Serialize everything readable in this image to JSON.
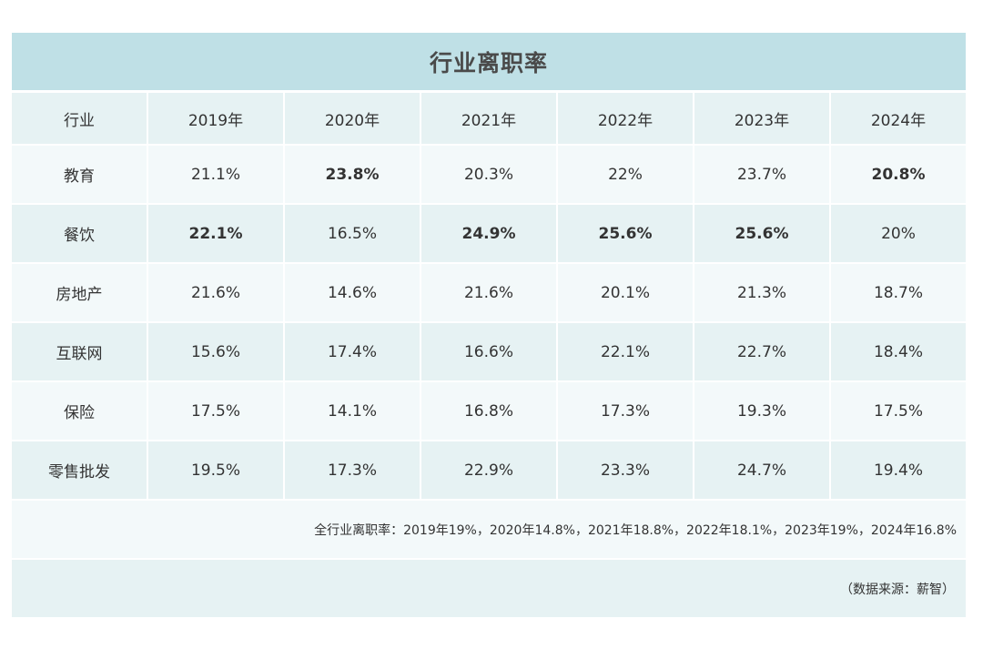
{
  "chart_data": {
    "type": "table",
    "title": "行业离职率",
    "columns": [
      "行业",
      "2019年",
      "2020年",
      "2021年",
      "2022年",
      "2023年",
      "2024年"
    ],
    "rows": [
      {
        "industry": "教育",
        "values": [
          "21.1%",
          "23.8%",
          "20.3%",
          "22%",
          "23.7%",
          "20.8%"
        ],
        "bold": [
          false,
          true,
          false,
          false,
          false,
          true
        ]
      },
      {
        "industry": "餐饮",
        "values": [
          "22.1%",
          "16.5%",
          "24.9%",
          "25.6%",
          "25.6%",
          "20%"
        ],
        "bold": [
          true,
          false,
          true,
          true,
          true,
          false
        ]
      },
      {
        "industry": "房地产",
        "values": [
          "21.6%",
          "14.6%",
          "21.6%",
          "20.1%",
          "21.3%",
          "18.7%"
        ],
        "bold": [
          false,
          false,
          false,
          false,
          false,
          false
        ]
      },
      {
        "industry": "互联网",
        "values": [
          "15.6%",
          "17.4%",
          "16.6%",
          "22.1%",
          "22.7%",
          "18.4%"
        ],
        "bold": [
          false,
          false,
          false,
          false,
          false,
          false
        ]
      },
      {
        "industry": "保险",
        "values": [
          "17.5%",
          "14.1%",
          "16.8%",
          "17.3%",
          "19.3%",
          "17.5%"
        ],
        "bold": [
          false,
          false,
          false,
          false,
          false,
          false
        ]
      },
      {
        "industry": "零售批发",
        "values": [
          "19.5%",
          "17.3%",
          "22.9%",
          "23.3%",
          "24.7%",
          "19.4%"
        ],
        "bold": [
          false,
          false,
          false,
          false,
          false,
          false
        ]
      }
    ],
    "note": "全行业离职率：2019年19%，2020年14.8%，2021年18.8%，2022年18.1%，2023年19%，2024年16.8%",
    "source": "（数据来源：薪智）"
  },
  "colors": {
    "title_bg": "#bfe0e6",
    "row_light": "#f3f9fa",
    "row_dark": "#e6f2f3"
  }
}
